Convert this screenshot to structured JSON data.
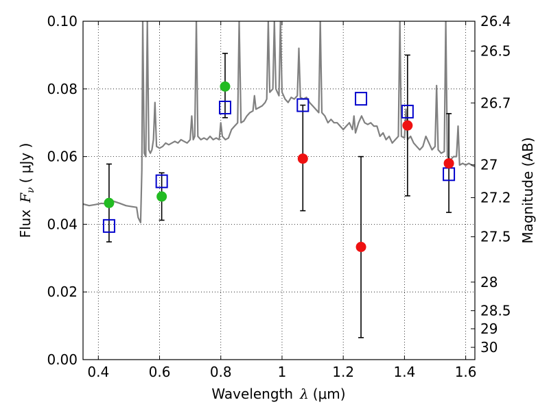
{
  "chart_data": {
    "type": "scatter",
    "title": "",
    "xlabel_prefix": "Wavelength",
    "xlabel_symbol": "λ",
    "xlabel_unit": "(μm)",
    "ylabel_prefix": "Flux",
    "ylabel_symbol": "F",
    "ylabel_subscript": "ν",
    "ylabel_unit": "( μJy )",
    "ylabel_right": "Magnitude (AB)",
    "xlim": [
      0.35,
      1.63
    ],
    "ylim": [
      0.0,
      0.1
    ],
    "grid": true,
    "x_ticks": [
      0.4,
      0.6,
      0.8,
      1.0,
      1.2,
      1.4,
      1.6
    ],
    "x_tick_labels": [
      "0.4",
      "0.6",
      "0.8",
      "1",
      "1.2",
      "1.4",
      "1.6"
    ],
    "y_ticks": [
      0.0,
      0.02,
      0.04,
      0.06,
      0.08,
      0.1
    ],
    "y_tick_labels": [
      "0.00",
      "0.02",
      "0.04",
      "0.06",
      "0.08",
      "0.10"
    ],
    "mag_ticks": [
      26.4,
      26.5,
      26.7,
      27,
      27.2,
      27.5,
      28,
      28.5,
      29,
      30
    ],
    "mag_tick_labels": [
      "26.4",
      "26.5",
      "26.7",
      "27",
      "27.2",
      "27.5",
      "28",
      "28.5",
      "29",
      "30"
    ],
    "colors": {
      "spectrum": "#808080",
      "green": "#22bb22",
      "red": "#ee1111",
      "model": "#0000cc",
      "error": "#000000"
    },
    "spectrum": [
      [
        0.35,
        0.046
      ],
      [
        0.37,
        0.0455
      ],
      [
        0.39,
        0.0458
      ],
      [
        0.41,
        0.0462
      ],
      [
        0.43,
        0.046
      ],
      [
        0.45,
        0.0468
      ],
      [
        0.47,
        0.0462
      ],
      [
        0.49,
        0.0455
      ],
      [
        0.51,
        0.0452
      ],
      [
        0.525,
        0.045
      ],
      [
        0.53,
        0.042
      ],
      [
        0.538,
        0.0405
      ],
      [
        0.542,
        0.056
      ],
      [
        0.545,
        0.1
      ],
      [
        0.55,
        0.061
      ],
      [
        0.555,
        0.06
      ],
      [
        0.56,
        0.1
      ],
      [
        0.565,
        0.062
      ],
      [
        0.57,
        0.061
      ],
      [
        0.575,
        0.062
      ],
      [
        0.58,
        0.065
      ],
      [
        0.585,
        0.076
      ],
      [
        0.59,
        0.063
      ],
      [
        0.6,
        0.0625
      ],
      [
        0.61,
        0.063
      ],
      [
        0.62,
        0.064
      ],
      [
        0.63,
        0.0635
      ],
      [
        0.64,
        0.064
      ],
      [
        0.65,
        0.0645
      ],
      [
        0.66,
        0.064
      ],
      [
        0.67,
        0.065
      ],
      [
        0.68,
        0.0645
      ],
      [
        0.69,
        0.064
      ],
      [
        0.7,
        0.065
      ],
      [
        0.705,
        0.072
      ],
      [
        0.71,
        0.065
      ],
      [
        0.715,
        0.066
      ],
      [
        0.72,
        0.1
      ],
      [
        0.725,
        0.066
      ],
      [
        0.735,
        0.065
      ],
      [
        0.745,
        0.0655
      ],
      [
        0.755,
        0.065
      ],
      [
        0.765,
        0.066
      ],
      [
        0.775,
        0.065
      ],
      [
        0.785,
        0.0655
      ],
      [
        0.795,
        0.065
      ],
      [
        0.8,
        0.07
      ],
      [
        0.805,
        0.066
      ],
      [
        0.815,
        0.065
      ],
      [
        0.825,
        0.0655
      ],
      [
        0.835,
        0.068
      ],
      [
        0.845,
        0.069
      ],
      [
        0.855,
        0.07
      ],
      [
        0.86,
        0.1
      ],
      [
        0.866,
        0.07
      ],
      [
        0.875,
        0.0705
      ],
      [
        0.885,
        0.072
      ],
      [
        0.895,
        0.073
      ],
      [
        0.905,
        0.0735
      ],
      [
        0.91,
        0.078
      ],
      [
        0.915,
        0.074
      ],
      [
        0.925,
        0.0745
      ],
      [
        0.935,
        0.075
      ],
      [
        0.945,
        0.076
      ],
      [
        0.95,
        0.077
      ],
      [
        0.955,
        0.1
      ],
      [
        0.96,
        0.079
      ],
      [
        0.97,
        0.08
      ],
      [
        0.975,
        0.1
      ],
      [
        0.98,
        0.08
      ],
      [
        0.99,
        0.078
      ],
      [
        0.995,
        0.1
      ],
      [
        1.0,
        0.079
      ],
      [
        1.01,
        0.077
      ],
      [
        1.02,
        0.076
      ],
      [
        1.03,
        0.0775
      ],
      [
        1.04,
        0.077
      ],
      [
        1.05,
        0.078
      ],
      [
        1.055,
        0.092
      ],
      [
        1.06,
        0.0775
      ],
      [
        1.07,
        0.077
      ],
      [
        1.08,
        0.0775
      ],
      [
        1.09,
        0.076
      ],
      [
        1.1,
        0.075
      ],
      [
        1.11,
        0.074
      ],
      [
        1.12,
        0.073
      ],
      [
        1.125,
        0.1
      ],
      [
        1.13,
        0.073
      ],
      [
        1.14,
        0.072
      ],
      [
        1.15,
        0.07
      ],
      [
        1.16,
        0.071
      ],
      [
        1.17,
        0.07
      ],
      [
        1.18,
        0.07
      ],
      [
        1.19,
        0.069
      ],
      [
        1.2,
        0.068
      ],
      [
        1.21,
        0.069
      ],
      [
        1.22,
        0.07
      ],
      [
        1.23,
        0.068
      ],
      [
        1.235,
        0.072
      ],
      [
        1.24,
        0.067
      ],
      [
        1.25,
        0.07
      ],
      [
        1.26,
        0.072
      ],
      [
        1.27,
        0.07
      ],
      [
        1.28,
        0.0695
      ],
      [
        1.29,
        0.07
      ],
      [
        1.3,
        0.069
      ],
      [
        1.31,
        0.069
      ],
      [
        1.32,
        0.066
      ],
      [
        1.33,
        0.067
      ],
      [
        1.34,
        0.065
      ],
      [
        1.35,
        0.066
      ],
      [
        1.36,
        0.064
      ],
      [
        1.37,
        0.065
      ],
      [
        1.38,
        0.066
      ],
      [
        1.385,
        0.1
      ],
      [
        1.39,
        0.066
      ],
      [
        1.4,
        0.0655
      ],
      [
        1.405,
        0.074
      ],
      [
        1.41,
        0.065
      ],
      [
        1.42,
        0.066
      ],
      [
        1.43,
        0.064
      ],
      [
        1.44,
        0.063
      ],
      [
        1.45,
        0.062
      ],
      [
        1.46,
        0.063
      ],
      [
        1.47,
        0.066
      ],
      [
        1.48,
        0.064
      ],
      [
        1.49,
        0.062
      ],
      [
        1.5,
        0.063
      ],
      [
        1.505,
        0.081
      ],
      [
        1.51,
        0.062
      ],
      [
        1.52,
        0.061
      ],
      [
        1.53,
        0.0615
      ],
      [
        1.535,
        0.1
      ],
      [
        1.54,
        0.06
      ],
      [
        1.55,
        0.059
      ],
      [
        1.56,
        0.06
      ],
      [
        1.57,
        0.06
      ],
      [
        1.575,
        0.069
      ],
      [
        1.58,
        0.0575
      ],
      [
        1.59,
        0.058
      ],
      [
        1.6,
        0.0575
      ],
      [
        1.61,
        0.058
      ],
      [
        1.62,
        0.0575
      ],
      [
        1.63,
        0.057
      ]
    ],
    "observations": [
      {
        "x": 0.435,
        "y": 0.0463,
        "yerr": [
          0.0348,
          0.0578
        ],
        "color": "green"
      },
      {
        "x": 0.607,
        "y": 0.0482,
        "yerr": [
          0.0412,
          0.0552
        ],
        "color": "green"
      },
      {
        "x": 0.814,
        "y": 0.0807,
        "yerr": [
          0.0715,
          0.0905
        ],
        "color": "green"
      },
      {
        "x": 1.068,
        "y": 0.0594,
        "yerr": [
          0.044,
          0.0752
        ],
        "color": "red"
      },
      {
        "x": 1.258,
        "y": 0.0333,
        "yerr": [
          0.0065,
          0.06
        ],
        "color": "red"
      },
      {
        "x": 1.41,
        "y": 0.0692,
        "yerr": [
          0.0484,
          0.09
        ],
        "color": "red"
      },
      {
        "x": 1.545,
        "y": 0.058,
        "yerr": [
          0.0435,
          0.0727
        ],
        "color": "red"
      }
    ],
    "model_points": [
      {
        "x": 0.435,
        "y": 0.0395
      },
      {
        "x": 0.607,
        "y": 0.0527
      },
      {
        "x": 0.814,
        "y": 0.0745
      },
      {
        "x": 1.068,
        "y": 0.0752
      },
      {
        "x": 1.258,
        "y": 0.0771
      },
      {
        "x": 1.41,
        "y": 0.0733
      },
      {
        "x": 1.545,
        "y": 0.0548
      }
    ]
  }
}
